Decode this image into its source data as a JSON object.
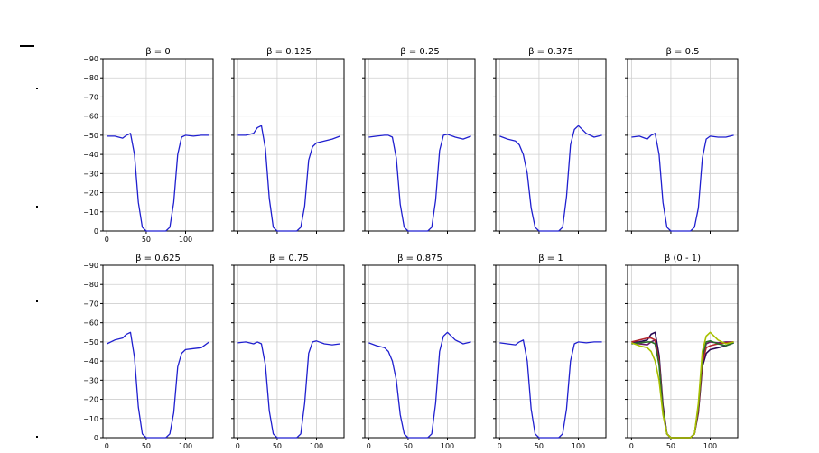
{
  "chart_data": [
    {
      "type": "line",
      "title": "β = 0",
      "x": [
        0,
        10,
        20,
        25,
        30,
        35,
        40,
        45,
        50,
        55,
        60,
        65,
        70,
        75,
        80,
        85,
        90,
        95,
        100,
        110,
        120,
        130
      ],
      "series": [
        {
          "values": [
            -49.5,
            -49.5,
            -48.5,
            -50,
            -51,
            -40,
            -15,
            -2,
            0,
            0,
            0,
            0,
            0,
            0,
            -2,
            -15,
            -40,
            -49,
            -50,
            -49.5,
            -50,
            -50
          ]
        }
      ],
      "ylim": [
        0,
        -90
      ],
      "xlim": [
        -5,
        135
      ],
      "yticks": [
        -90,
        -80,
        -70,
        -60,
        -50,
        -40,
        -30,
        -20,
        -10,
        0
      ],
      "xticks": [
        0,
        50,
        100
      ],
      "ytick_labels": [
        "−90",
        "−80",
        "−70",
        "−60",
        "−50",
        "−40",
        "−30",
        "−20",
        "−10",
        "0"
      ],
      "xtick_labels": [
        "0",
        "50",
        "100"
      ],
      "grid": true
    },
    {
      "type": "line",
      "title": "β = 0.125",
      "x": [
        0,
        10,
        20,
        25,
        30,
        35,
        40,
        45,
        50,
        55,
        60,
        65,
        70,
        75,
        80,
        85,
        90,
        95,
        100,
        110,
        120,
        130
      ],
      "series": [
        {
          "values": [
            -50,
            -50,
            -51,
            -54,
            -55,
            -43,
            -17,
            -2,
            0,
            0,
            0,
            0,
            0,
            0,
            -2,
            -13,
            -37,
            -44,
            -46,
            -47,
            -48,
            -49.5
          ]
        }
      ],
      "ylim": [
        0,
        -90
      ],
      "xlim": [
        -5,
        135
      ],
      "yticks": [
        -90,
        -80,
        -70,
        -60,
        -50,
        -40,
        -30,
        -20,
        -10,
        0
      ],
      "xticks": [
        0,
        50,
        100
      ],
      "ytick_labels": [
        "",
        "",
        "",
        "",
        "",
        "",
        "",
        "",
        "",
        ""
      ],
      "xtick_labels": [
        "",
        "",
        ""
      ],
      "grid": true
    },
    {
      "type": "line",
      "title": "β = 0.25",
      "x": [
        0,
        10,
        20,
        25,
        30,
        35,
        40,
        45,
        50,
        55,
        60,
        65,
        70,
        75,
        80,
        85,
        90,
        95,
        100,
        110,
        120,
        130
      ],
      "series": [
        {
          "values": [
            -49,
            -49.5,
            -50,
            -50,
            -49,
            -38,
            -14,
            -2,
            0,
            0,
            0,
            0,
            0,
            0,
            -2,
            -16,
            -42,
            -50,
            -50.5,
            -49,
            -48,
            -49.5
          ]
        }
      ],
      "ylim": [
        0,
        -90
      ],
      "xlim": [
        -5,
        135
      ],
      "yticks": [
        -90,
        -80,
        -70,
        -60,
        -50,
        -40,
        -30,
        -20,
        -10,
        0
      ],
      "xticks": [
        0,
        50,
        100
      ],
      "ytick_labels": [
        "",
        "",
        "",
        "",
        "",
        "",
        "",
        "",
        "",
        ""
      ],
      "xtick_labels": [
        "",
        "",
        ""
      ],
      "grid": true
    },
    {
      "type": "line",
      "title": "β = 0.375",
      "x": [
        0,
        10,
        20,
        25,
        30,
        35,
        40,
        45,
        50,
        55,
        60,
        65,
        70,
        75,
        80,
        85,
        90,
        95,
        100,
        110,
        120,
        130
      ],
      "series": [
        {
          "values": [
            -49.5,
            -48,
            -47,
            -45,
            -40,
            -30,
            -12,
            -2,
            0,
            0,
            0,
            0,
            0,
            0,
            -2,
            -18,
            -45,
            -53,
            -55,
            -51,
            -49,
            -50
          ]
        }
      ],
      "ylim": [
        0,
        -90
      ],
      "xlim": [
        -5,
        135
      ],
      "yticks": [
        -90,
        -80,
        -70,
        -60,
        -50,
        -40,
        -30,
        -20,
        -10,
        0
      ],
      "xticks": [
        0,
        50,
        100
      ],
      "ytick_labels": [
        "",
        "",
        "",
        "",
        "",
        "",
        "",
        "",
        "",
        ""
      ],
      "xtick_labels": [
        "",
        "",
        ""
      ],
      "grid": true
    },
    {
      "type": "line",
      "title": "β = 0.5",
      "x": [
        0,
        10,
        20,
        25,
        30,
        35,
        40,
        45,
        50,
        55,
        60,
        65,
        70,
        75,
        80,
        85,
        90,
        95,
        100,
        110,
        120,
        130
      ],
      "series": [
        {
          "values": [
            -49,
            -49.5,
            -48,
            -50,
            -51,
            -40,
            -15,
            -2,
            0,
            0,
            0,
            0,
            0,
            0,
            -2,
            -12,
            -38,
            -48,
            -49.5,
            -49,
            -49,
            -50
          ]
        }
      ],
      "ylim": [
        0,
        -90
      ],
      "xlim": [
        -5,
        135
      ],
      "yticks": [
        -90,
        -80,
        -70,
        -60,
        -50,
        -40,
        -30,
        -20,
        -10,
        0
      ],
      "xticks": [
        0,
        50,
        100
      ],
      "ytick_labels": [
        "",
        "",
        "",
        "",
        "",
        "",
        "",
        "",
        "",
        ""
      ],
      "xtick_labels": [
        "",
        "",
        ""
      ],
      "grid": true
    },
    {
      "type": "line",
      "title": "β = 0.625",
      "x": [
        0,
        10,
        20,
        25,
        30,
        35,
        40,
        45,
        50,
        55,
        60,
        65,
        70,
        75,
        80,
        85,
        90,
        95,
        100,
        110,
        120,
        130
      ],
      "series": [
        {
          "values": [
            -49,
            -51,
            -52,
            -54,
            -55,
            -42,
            -16,
            -2,
            0,
            0,
            0,
            0,
            0,
            0,
            -2,
            -13,
            -37,
            -44,
            -46,
            -46.5,
            -47,
            -50
          ]
        }
      ],
      "ylim": [
        0,
        -90
      ],
      "xlim": [
        -5,
        135
      ],
      "yticks": [
        -90,
        -80,
        -70,
        -60,
        -50,
        -40,
        -30,
        -20,
        -10,
        0
      ],
      "xticks": [
        0,
        50,
        100
      ],
      "ytick_labels": [
        "−90",
        "−80",
        "−70",
        "−60",
        "−50",
        "−40",
        "−30",
        "−20",
        "−10",
        "0"
      ],
      "xtick_labels": [
        "0",
        "50",
        "100"
      ],
      "grid": true
    },
    {
      "type": "line",
      "title": "β = 0.75",
      "x": [
        0,
        10,
        20,
        25,
        30,
        35,
        40,
        45,
        50,
        55,
        60,
        65,
        70,
        75,
        80,
        85,
        90,
        95,
        100,
        110,
        120,
        130
      ],
      "series": [
        {
          "values": [
            -49.5,
            -50,
            -49,
            -50,
            -49,
            -38,
            -14,
            -2,
            0,
            0,
            0,
            0,
            0,
            0,
            -2,
            -18,
            -44,
            -50,
            -50.5,
            -49,
            -48.5,
            -49
          ]
        }
      ],
      "ylim": [
        0,
        -90
      ],
      "xlim": [
        -5,
        135
      ],
      "yticks": [
        -90,
        -80,
        -70,
        -60,
        -50,
        -40,
        -30,
        -20,
        -10,
        0
      ],
      "xticks": [
        0,
        50,
        100
      ],
      "ytick_labels": [
        "",
        "",
        "",
        "",
        "",
        "",
        "",
        "",
        "",
        ""
      ],
      "xtick_labels": [
        "0",
        "50",
        "100"
      ],
      "grid": true
    },
    {
      "type": "line",
      "title": "β = 0.875",
      "x": [
        0,
        10,
        20,
        25,
        30,
        35,
        40,
        45,
        50,
        55,
        60,
        65,
        70,
        75,
        80,
        85,
        90,
        95,
        100,
        110,
        120,
        130
      ],
      "series": [
        {
          "values": [
            -49.5,
            -48,
            -47,
            -45,
            -40,
            -30,
            -12,
            -2,
            0,
            0,
            0,
            0,
            0,
            0,
            -2,
            -18,
            -45,
            -53,
            -55,
            -51,
            -49,
            -50
          ]
        }
      ],
      "ylim": [
        0,
        -90
      ],
      "xlim": [
        -5,
        135
      ],
      "yticks": [
        -90,
        -80,
        -70,
        -60,
        -50,
        -40,
        -30,
        -20,
        -10,
        0
      ],
      "xticks": [
        0,
        50,
        100
      ],
      "ytick_labels": [
        "",
        "",
        "",
        "",
        "",
        "",
        "",
        "",
        "",
        ""
      ],
      "xtick_labels": [
        "0",
        "50",
        "100"
      ],
      "grid": true
    },
    {
      "type": "line",
      "title": "β = 1",
      "x": [
        0,
        10,
        20,
        25,
        30,
        35,
        40,
        45,
        50,
        55,
        60,
        65,
        70,
        75,
        80,
        85,
        90,
        95,
        100,
        110,
        120,
        130
      ],
      "series": [
        {
          "values": [
            -49.5,
            -49,
            -48.5,
            -50,
            -51,
            -40,
            -15,
            -2,
            0,
            0,
            0,
            0,
            0,
            0,
            -2,
            -15,
            -40,
            -49,
            -50,
            -49.5,
            -50,
            -50
          ]
        }
      ],
      "ylim": [
        0,
        -90
      ],
      "xlim": [
        -5,
        135
      ],
      "yticks": [
        -90,
        -80,
        -70,
        -60,
        -50,
        -40,
        -30,
        -20,
        -10,
        0
      ],
      "xticks": [
        0,
        50,
        100
      ],
      "ytick_labels": [
        "",
        "",
        "",
        "",
        "",
        "",
        "",
        "",
        "",
        ""
      ],
      "xtick_labels": [
        "0",
        "50",
        "100"
      ],
      "grid": true
    },
    {
      "type": "line",
      "title": "β (0 - 1)",
      "x": [
        0,
        10,
        20,
        25,
        30,
        35,
        40,
        45,
        50,
        55,
        60,
        65,
        70,
        75,
        80,
        85,
        90,
        95,
        100,
        110,
        120,
        130
      ],
      "series": [
        {
          "color": "#2a0a55",
          "values": [
            -50,
            -50,
            -51,
            -54,
            -55,
            -43,
            -17,
            -2,
            0,
            0,
            0,
            0,
            0,
            0,
            -2,
            -13,
            -37,
            -44,
            -46,
            -47,
            -48,
            -49.5
          ]
        },
        {
          "color": "#6b1a6b",
          "values": [
            -49.5,
            -49,
            -48.5,
            -50,
            -51,
            -40,
            -15,
            -2,
            0,
            0,
            0,
            0,
            0,
            0,
            -2,
            -15,
            -40,
            -49,
            -50,
            -49.5,
            -50,
            -50
          ]
        },
        {
          "color": "#b3262e",
          "values": [
            -50,
            -51,
            -52,
            -52,
            -51,
            -40,
            -15,
            -2,
            0,
            0,
            0,
            0,
            0,
            0,
            -2,
            -14,
            -39,
            -47,
            -48,
            -49,
            -49.5,
            -50
          ]
        },
        {
          "color": "#2a6e2a",
          "values": [
            -49,
            -49.5,
            -50,
            -50,
            -49,
            -38,
            -14,
            -2,
            0,
            0,
            0,
            0,
            0,
            0,
            -2,
            -16,
            -42,
            -50,
            -50.5,
            -49,
            -48,
            -49.5
          ]
        },
        {
          "color": "#a8c000",
          "values": [
            -49.5,
            -48,
            -47,
            -45,
            -40,
            -30,
            -12,
            -2,
            0,
            0,
            0,
            0,
            0,
            0,
            -2,
            -18,
            -45,
            -53,
            -55,
            -51,
            -49,
            -50
          ]
        }
      ],
      "ylim": [
        0,
        -90
      ],
      "xlim": [
        -5,
        135
      ],
      "yticks": [
        -90,
        -80,
        -70,
        -60,
        -50,
        -40,
        -30,
        -20,
        -10,
        0
      ],
      "xticks": [
        0,
        50,
        100
      ],
      "ytick_labels": [
        "",
        "",
        "",
        "",
        "",
        "",
        "",
        "",
        "",
        ""
      ],
      "xtick_labels": [
        "0",
        "50",
        "100"
      ],
      "grid": true
    }
  ],
  "colors": {
    "line": "#1f1fcf",
    "grid": "#cfcfcf"
  }
}
